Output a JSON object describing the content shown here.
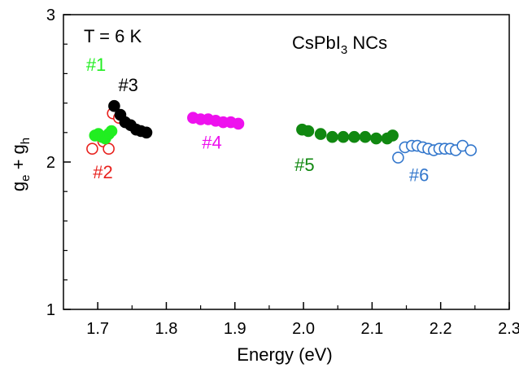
{
  "chart_data": {
    "type": "scatter",
    "title": "",
    "xlabel": "Energy (eV)",
    "ylabel": {
      "base1": "g",
      "sub1": "e",
      "mid": " + g",
      "sub2": "h"
    },
    "xlim": [
      1.65,
      2.3
    ],
    "ylim": [
      1,
      3
    ],
    "x_ticks": [
      1.7,
      1.8,
      1.9,
      2.0,
      2.1,
      2.2,
      2.3
    ],
    "x_tick_labels": [
      "1.7",
      "1.8",
      "1.9",
      "2.0",
      "2.1",
      "2.2",
      "2.3"
    ],
    "y_ticks": [
      1,
      2,
      3
    ],
    "y_tick_labels": [
      "1",
      "2",
      "3"
    ],
    "grid": false,
    "annotations": {
      "temperature": "T = 6 K",
      "sample": {
        "pre": "CsPbI",
        "sub": "3",
        "post": " NCs"
      }
    },
    "series": [
      {
        "name": "#2",
        "color": "#e8211d",
        "filled": false,
        "x": [
          1.692,
          1.708,
          1.716,
          1.722,
          1.731
        ],
        "y": [
          2.09,
          2.14,
          2.09,
          2.33,
          2.3
        ]
      },
      {
        "name": "#1",
        "color": "#21ee21",
        "filled": true,
        "x": [
          1.696,
          1.701,
          1.706,
          1.711,
          1.716,
          1.72
        ],
        "y": [
          2.18,
          2.19,
          2.17,
          2.16,
          2.19,
          2.21
        ]
      },
      {
        "name": "#3",
        "color": "#000000",
        "filled": true,
        "x": [
          1.724,
          1.733,
          1.74,
          1.748,
          1.756,
          1.763,
          1.771
        ],
        "y": [
          2.38,
          2.32,
          2.27,
          2.25,
          2.22,
          2.21,
          2.2
        ]
      },
      {
        "name": "#4",
        "color": "#ee11ee",
        "filled": true,
        "x": [
          1.839,
          1.85,
          1.861,
          1.872,
          1.883,
          1.894,
          1.905
        ],
        "y": [
          2.3,
          2.29,
          2.29,
          2.28,
          2.27,
          2.27,
          2.26
        ]
      },
      {
        "name": "#5",
        "color": "#118811",
        "filled": true,
        "x": [
          1.998,
          2.007,
          2.025,
          2.042,
          2.058,
          2.074,
          2.09,
          2.106,
          2.122,
          2.13
        ],
        "y": [
          2.22,
          2.21,
          2.19,
          2.17,
          2.17,
          2.17,
          2.17,
          2.16,
          2.16,
          2.18
        ]
      },
      {
        "name": "#6",
        "color": "#3377cc",
        "filled": false,
        "x": [
          2.138,
          2.148,
          2.158,
          2.166,
          2.174,
          2.182,
          2.19,
          2.198,
          2.206,
          2.214,
          2.222,
          2.232,
          2.244
        ],
        "y": [
          2.03,
          2.1,
          2.11,
          2.11,
          2.1,
          2.09,
          2.08,
          2.09,
          2.09,
          2.09,
          2.08,
          2.11,
          2.08
        ]
      }
    ],
    "series_labels": [
      {
        "text": "#1",
        "color": "#21ee21",
        "x": 1.683,
        "y": 2.62
      },
      {
        "text": "#2",
        "color": "#e8211d",
        "x": 1.693,
        "y": 1.89
      },
      {
        "text": "#3",
        "color": "#000000",
        "x": 1.73,
        "y": 2.48
      },
      {
        "text": "#4",
        "color": "#ee11ee",
        "x": 1.852,
        "y": 2.09
      },
      {
        "text": "#5",
        "color": "#118811",
        "x": 1.987,
        "y": 1.94
      },
      {
        "text": "#6",
        "color": "#3377cc",
        "x": 2.154,
        "y": 1.87
      }
    ]
  }
}
